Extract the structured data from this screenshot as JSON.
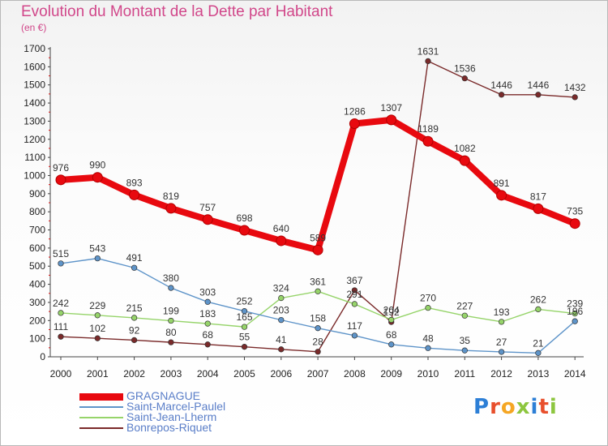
{
  "title": "Evolution du Montant de la Dette par Habitant",
  "unit": "(en €)",
  "brand": {
    "letters": [
      "P",
      "r",
      "o",
      "x",
      "i",
      "t",
      "i"
    ],
    "colors": [
      "#2d7fd6",
      "#e84f2c",
      "#f5a623",
      "#8dc63f",
      "#2d7fd6",
      "#e84f2c",
      "#8dc63f"
    ]
  },
  "chart_data": {
    "type": "line",
    "title": "Evolution du Montant de la Dette par Habitant",
    "ylabel": "(en €)",
    "xlabel": "",
    "categories": [
      "2000",
      "2001",
      "2002",
      "2003",
      "2004",
      "2005",
      "2006",
      "2007",
      "2008",
      "2009",
      "2010",
      "2011",
      "2012",
      "2013",
      "2014"
    ],
    "ylim": [
      0,
      1700
    ],
    "yticks": [
      0,
      100,
      200,
      300,
      400,
      500,
      600,
      700,
      800,
      900,
      1000,
      1100,
      1200,
      1300,
      1400,
      1500,
      1600,
      1700
    ],
    "grid": false,
    "legend": "bottom-left",
    "series": [
      {
        "name": "GRAGNAGUE",
        "color": "#e8090f",
        "values": [
          976,
          990,
          893,
          819,
          757,
          698,
          640,
          589,
          1286,
          1307,
          1189,
          1082,
          891,
          817,
          735
        ],
        "labels": [
          "976",
          "990",
          "893",
          "819",
          "757",
          "698",
          "640",
          "589",
          "1286",
          "1307",
          "1189",
          "1082",
          "891",
          "817",
          "735"
        ]
      },
      {
        "name": "Saint-Marcel-Paulel",
        "color": "#5e94c9",
        "values": [
          515,
          543,
          491,
          380,
          303,
          252,
          203,
          158,
          117,
          68,
          48,
          35,
          27,
          21,
          196
        ],
        "labels": [
          "515",
          "543",
          "491",
          "380",
          "303",
          "252",
          "203",
          "158",
          "117",
          "68",
          "48",
          "35",
          "27",
          "21",
          "196"
        ]
      },
      {
        "name": "Saint-Jean-Lherm",
        "color": "#96d46a",
        "values": [
          242,
          229,
          215,
          199,
          183,
          165,
          324,
          361,
          291,
          204,
          270,
          227,
          193,
          262,
          239
        ],
        "labels": [
          "242",
          "229",
          "215",
          "199",
          "183",
          "165",
          "324",
          "361",
          "291",
          "204",
          "270",
          "227",
          "193",
          "262",
          "239"
        ]
      },
      {
        "name": "Bonrepos-Riquet",
        "color": "#7a2a2a",
        "values": [
          111,
          102,
          92,
          80,
          68,
          55,
          41,
          28,
          367,
          192,
          1631,
          1536,
          1446,
          1446,
          1432
        ],
        "labels": [
          "111",
          "102",
          "92",
          "80",
          "68",
          "55",
          "41",
          "28",
          "367",
          "192",
          "1631",
          "1536",
          "1446",
          "1446",
          "1432"
        ]
      }
    ]
  }
}
